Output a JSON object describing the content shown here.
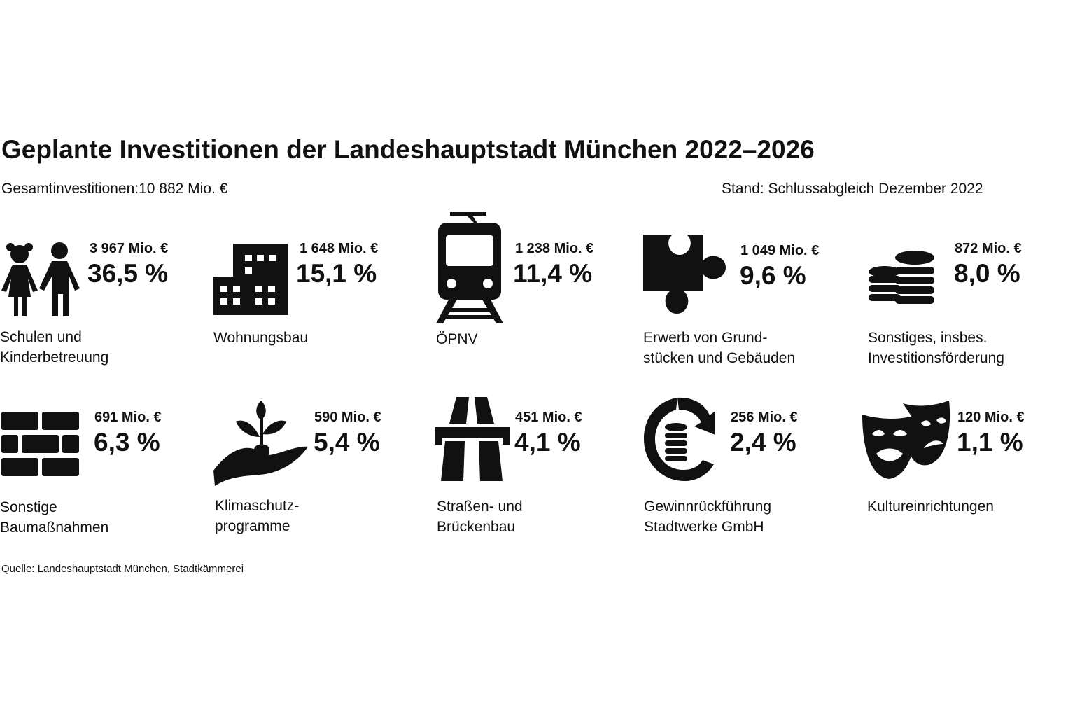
{
  "chart_data": {
    "type": "table",
    "title": "Geplante Investitionen der Landeshauptstadt München 2022–2026",
    "subtitle": "Gesamtinvestitionen:10 882 Mio. €",
    "stand": "Stand: Schlussabgleich Dezember 2022",
    "source": "Quelle: Landeshauptstadt München, Stadtkämmerei",
    "items": [
      {
        "amount": "3 967 Mio. €",
        "percent": "36,5 %",
        "label_lines": [
          "Schulen und",
          "Kinderbetreuung"
        ],
        "icon": "children-icon",
        "value_mio": 3967,
        "share": 36.5
      },
      {
        "amount": "1 648 Mio. €",
        "percent": "15,1 %",
        "label_lines": [
          "Wohnungsbau"
        ],
        "icon": "buildings-icon",
        "value_mio": 1648,
        "share": 15.1
      },
      {
        "amount": "1 238 Mio. €",
        "percent": "11,4 %",
        "label_lines": [
          "ÖPNV"
        ],
        "icon": "tram-icon",
        "value_mio": 1238,
        "share": 11.4
      },
      {
        "amount": "1 049 Mio. €",
        "percent": "9,6 %",
        "label_lines": [
          "Erwerb von Grund-",
          "stücken und Gebäuden"
        ],
        "icon": "puzzle-icon",
        "value_mio": 1049,
        "share": 9.6
      },
      {
        "amount": "872 Mio. €",
        "percent": "8,0 %",
        "label_lines": [
          "Sonstiges, insbes.",
          "Investitionsförderung"
        ],
        "icon": "coins-icon",
        "value_mio": 872,
        "share": 8.0
      },
      {
        "amount": "691 Mio. €",
        "percent": "6,3 %",
        "label_lines": [
          "Sonstige",
          "Baumaßnahmen"
        ],
        "icon": "bricks-icon",
        "value_mio": 691,
        "share": 6.3
      },
      {
        "amount": "590 Mio. €",
        "percent": "5,4 %",
        "label_lines": [
          "Klimaschutz-",
          "programme"
        ],
        "icon": "plant-hand-icon",
        "value_mio": 590,
        "share": 5.4
      },
      {
        "amount": "451 Mio. €",
        "percent": "4,1 %",
        "label_lines": [
          "Straßen- und",
          "Brückenbau"
        ],
        "icon": "road-bridge-icon",
        "value_mio": 451,
        "share": 4.1
      },
      {
        "amount": "256 Mio. €",
        "percent": "2,4 %",
        "label_lines": [
          "Gewinnrückführung",
          "Stadtwerke GmbH"
        ],
        "icon": "coin-return-icon",
        "value_mio": 256,
        "share": 2.4
      },
      {
        "amount": "120 Mio. €",
        "percent": "1,1 %",
        "label_lines": [
          "Kultureinrichtungen"
        ],
        "icon": "theater-masks-icon",
        "value_mio": 120,
        "share": 1.1
      }
    ]
  },
  "colors": {
    "ink": "#111111",
    "background": "#ffffff"
  }
}
